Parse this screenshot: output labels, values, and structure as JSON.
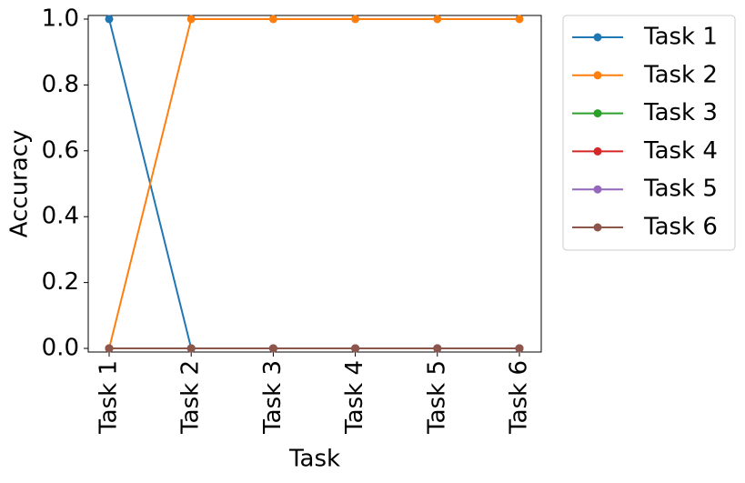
{
  "chart_data": {
    "type": "line",
    "xlabel": "Task",
    "ylabel": "Accuracy",
    "categories": [
      "Task 1",
      "Task 2",
      "Task 3",
      "Task 4",
      "Task 5",
      "Task 6"
    ],
    "series": [
      {
        "name": "Task 1",
        "color": "#1f77b4",
        "values": [
          1,
          0,
          0,
          0,
          0,
          0
        ]
      },
      {
        "name": "Task 2",
        "color": "#ff7f0e",
        "values": [
          0,
          1,
          1,
          1,
          1,
          1
        ]
      },
      {
        "name": "Task 3",
        "color": "#2ca02c",
        "values": [
          0,
          0,
          0,
          0,
          0,
          0
        ]
      },
      {
        "name": "Task 4",
        "color": "#d62728",
        "values": [
          0,
          0,
          0,
          0,
          0,
          0
        ]
      },
      {
        "name": "Task 5",
        "color": "#9467bd",
        "values": [
          0,
          0,
          0,
          0,
          0,
          0
        ]
      },
      {
        "name": "Task 6",
        "color": "#8c564b",
        "values": [
          0,
          0,
          0,
          0,
          0,
          0
        ]
      }
    ],
    "ylim": [
      -0.011,
      1.011
    ],
    "yticks": [
      {
        "value": 0,
        "label": "0.0"
      },
      {
        "value": 0.2,
        "label": "0.2"
      },
      {
        "value": 0.4,
        "label": "0.4"
      },
      {
        "value": 0.6,
        "label": "0.6"
      },
      {
        "value": 0.8,
        "label": "0.8"
      },
      {
        "value": 1,
        "label": "1.0"
      }
    ],
    "legend": "outside upper right",
    "grid": false
  }
}
